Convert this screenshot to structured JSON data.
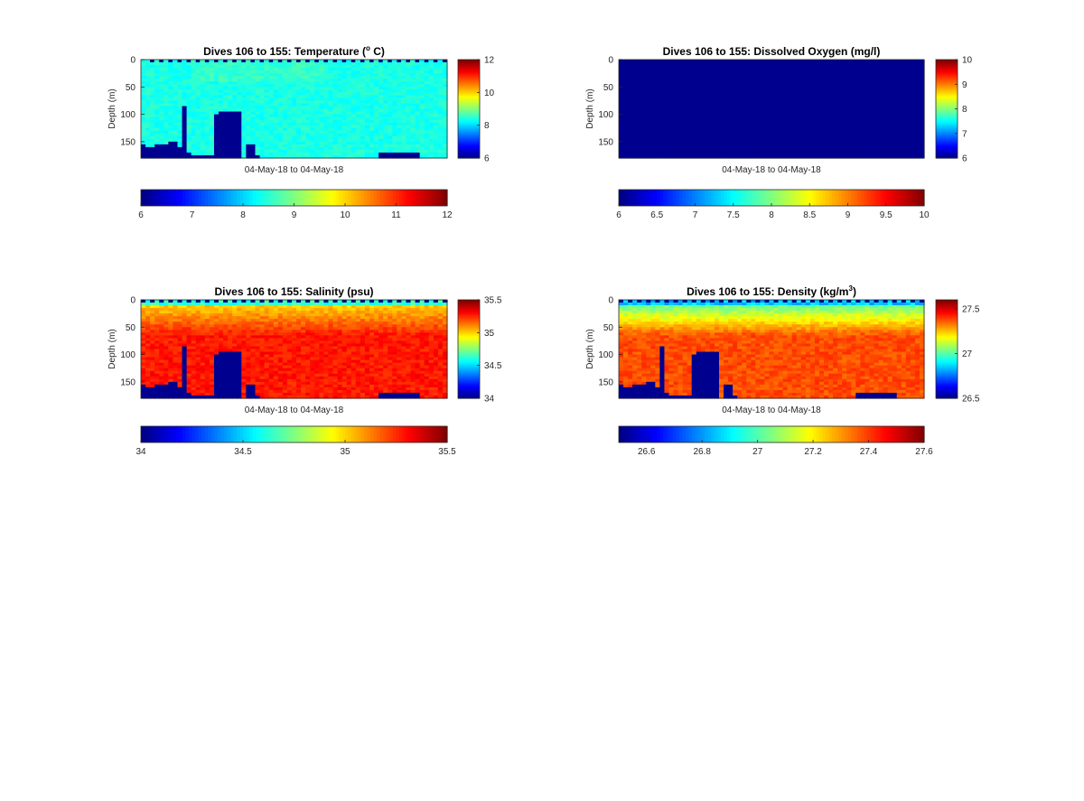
{
  "chart_data": [
    {
      "type": "heatmap",
      "title": "Dives 106 to 155: Temperature (° C)",
      "title_parts": [
        "Dives 106 to 155: Temperature (",
        "o",
        " C)"
      ],
      "xlabel": "04-May-18 to 04-May-18",
      "ylabel": "Depth (m)",
      "y_ticks": [
        "0",
        "50",
        "100",
        "150"
      ],
      "y_range": [
        0,
        180
      ],
      "clim": [
        6,
        12
      ],
      "colorbar_ticks": [
        "6",
        "8",
        "10",
        "12"
      ],
      "hcolorbar_ticks": [
        "6",
        "7",
        "8",
        "9",
        "10",
        "11",
        "12"
      ],
      "field_value": 8.4,
      "colormap": "jet",
      "no_data_color": "#00008f"
    },
    {
      "type": "heatmap",
      "title": "Dives 106 to 155: Dissolved Oxygen (mg/l)",
      "title_parts": [
        "Dives 106 to 155: Dissolved Oxygen (mg/l)",
        "",
        ""
      ],
      "xlabel": "04-May-18 to 04-May-18",
      "ylabel": "Depth (m)",
      "y_ticks": [
        "0",
        "50",
        "100",
        "150"
      ],
      "y_range": [
        0,
        180
      ],
      "clim": [
        6,
        10
      ],
      "colorbar_ticks": [
        "6",
        "7",
        "8",
        "9",
        "10"
      ],
      "hcolorbar_ticks": [
        "6",
        "6.5",
        "7",
        "7.5",
        "8",
        "8.5",
        "9",
        "9.5",
        "10"
      ],
      "field_value": 0,
      "colormap": "jet",
      "no_data_color": "#00008f"
    },
    {
      "type": "heatmap",
      "title": "Dives 106 to 155: Salinity (psu)",
      "title_parts": [
        "Dives 106 to 155: Salinity (psu)",
        "",
        ""
      ],
      "xlabel": "04-May-18 to 04-May-18",
      "ylabel": "Depth (m)",
      "y_ticks": [
        "0",
        "50",
        "100",
        "150"
      ],
      "y_range": [
        0,
        180
      ],
      "clim": [
        34,
        35.5
      ],
      "colorbar_ticks": [
        "34",
        "34.5",
        "35",
        "35.5"
      ],
      "hcolorbar_ticks": [
        "34",
        "34.5",
        "35",
        "35.5"
      ],
      "surface_value": 35.0,
      "deep_value": 35.28,
      "colormap": "jet",
      "no_data_color": "#00008f"
    },
    {
      "type": "heatmap",
      "title": "Dives 106 to 155: Density (kg/m3)",
      "title_parts": [
        "Dives 106 to 155: Density (kg/m",
        "3",
        ")"
      ],
      "xlabel": "04-May-18 to 04-May-18",
      "ylabel": "Depth (m)",
      "y_ticks": [
        "0",
        "50",
        "100",
        "150"
      ],
      "y_range": [
        0,
        180
      ],
      "clim": [
        26.5,
        27.6
      ],
      "colorbar_ticks": [
        "26.5",
        "27",
        "27.5"
      ],
      "colorbar_tick_values": [
        26.5,
        27.0,
        27.5
      ],
      "hcolorbar_ticks": [
        "26.6",
        "26.8",
        "27",
        "27.2",
        "27.4",
        "27.6"
      ],
      "hcolorbar_tick_values": [
        26.6,
        26.8,
        27.0,
        27.2,
        27.4,
        27.6
      ],
      "surface_value": 27.02,
      "deep_value": 27.38,
      "colormap": "jet",
      "no_data_color": "#00008f"
    }
  ]
}
